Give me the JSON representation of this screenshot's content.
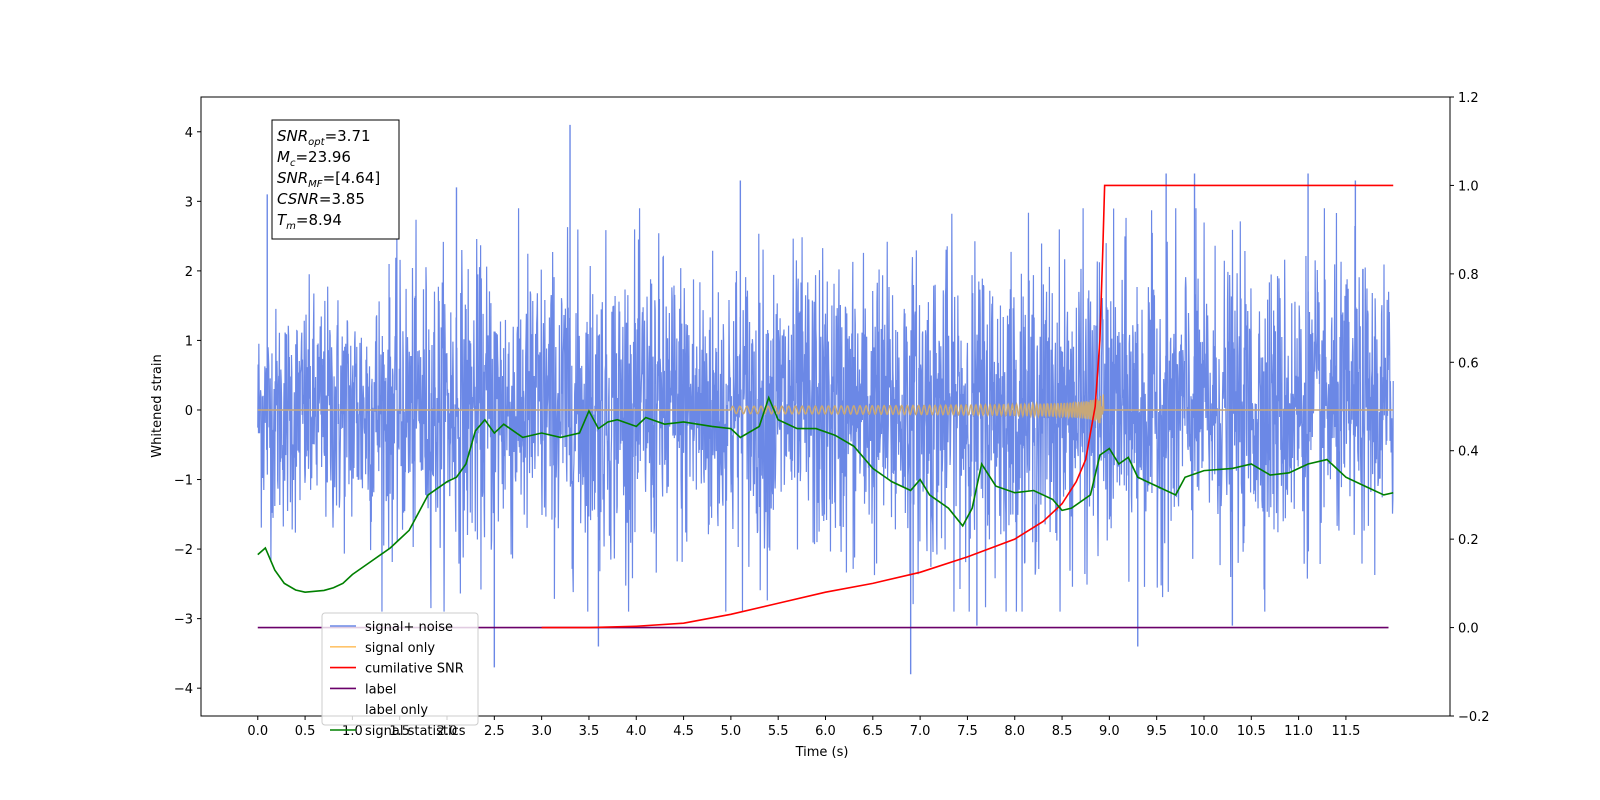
{
  "chart_data": {
    "type": "line",
    "xlabel": "Time (s)",
    "ylabel": "Whitened strain",
    "xlim": [
      -0.6,
      12.6
    ],
    "ylim_left": [
      -4.4,
      4.5
    ],
    "ylim_right": [
      -0.2,
      1.2
    ],
    "x_ticks": [
      "0.0",
      "0.5",
      "1.0",
      "1.5",
      "2.0",
      "2.5",
      "3.0",
      "3.5",
      "4.0",
      "4.5",
      "5.0",
      "5.5",
      "6.0",
      "6.5",
      "7.0",
      "7.5",
      "8.0",
      "8.5",
      "9.0",
      "9.5",
      "10.0",
      "10.5",
      "11.0",
      "11.5"
    ],
    "y_ticks_left": [
      "4",
      "3",
      "2",
      "1",
      "0",
      "−1",
      "−2",
      "−3",
      "−4"
    ],
    "y_ticks_right": [
      "1.2",
      "1.0",
      "0.8",
      "0.6",
      "0.4",
      "0.2",
      "0.0",
      "−0.2"
    ],
    "annotation": {
      "lines": [
        {
          "main": "SNR",
          "sub": "opt",
          "rest": "=3.71"
        },
        {
          "main": "M",
          "sub": "c",
          "rest": "=23.96"
        },
        {
          "main": "SNR",
          "sub": "MF",
          "rest": "=[4.64]"
        },
        {
          "main": "CSNR",
          "sub": "",
          "rest": "=3.85"
        },
        {
          "main": "T",
          "sub": "m",
          "rest": "=8.94"
        }
      ]
    },
    "legend": {
      "placement": "lower-left",
      "entries": [
        {
          "label": "signal+ noise",
          "color": "#6b88e6"
        },
        {
          "label": "signal only",
          "color": "#ffc46b"
        },
        {
          "label": "cumilative SNR",
          "color": "#ff0000"
        },
        {
          "label": "label",
          "color": "#6a006a"
        },
        {
          "label": "label only",
          "color": "#000000"
        },
        {
          "label": "signal statistics",
          "color": "#008000"
        }
      ]
    },
    "series": [
      {
        "name": "signal+ noise",
        "axis": "left",
        "color": "#6b88e6",
        "description": "whitened noise plus signal, t = 0 to 12 s",
        "envelope_upper": [
          [
            0,
            1.5
          ],
          [
            2,
            2.3
          ],
          [
            4,
            2.4
          ],
          [
            6,
            2.3
          ],
          [
            8,
            2.4
          ],
          [
            10,
            2.3
          ],
          [
            12,
            2.2
          ]
        ],
        "envelope_lower": [
          [
            0,
            -1.8
          ],
          [
            2,
            -2.2
          ],
          [
            4,
            -2.3
          ],
          [
            6,
            -2.3
          ],
          [
            8,
            -2.4
          ],
          [
            10,
            -2.2
          ],
          [
            12,
            -2.0
          ]
        ],
        "spikes": [
          [
            3.3,
            4.1
          ],
          [
            2.1,
            3.2
          ],
          [
            5.1,
            3.3
          ],
          [
            9.6,
            3.4
          ],
          [
            9.9,
            3.4
          ],
          [
            11.1,
            3.4
          ],
          [
            11.6,
            3.3
          ],
          [
            0.1,
            3.1
          ],
          [
            2.5,
            -3.7
          ],
          [
            6.9,
            -3.8
          ],
          [
            3.6,
            -3.4
          ],
          [
            9.3,
            -3.4
          ],
          [
            10.3,
            -3.1
          ],
          [
            7.6,
            -3.1
          ]
        ]
      },
      {
        "name": "signal only",
        "axis": "left",
        "color": "#ffc46b",
        "description": "chirp near zero, growing to about ±0.65 at t ≈ 8.9 s",
        "chirp_end": 8.94,
        "peak_amplitude": 0.65
      },
      {
        "name": "cumilative SNR",
        "axis": "right",
        "color": "#ff0000",
        "points": [
          [
            3.0,
            0.0
          ],
          [
            3.5,
            0.0
          ],
          [
            4.0,
            0.003
          ],
          [
            4.5,
            0.01
          ],
          [
            5.0,
            0.03
          ],
          [
            5.5,
            0.055
          ],
          [
            6.0,
            0.08
          ],
          [
            6.5,
            0.1
          ],
          [
            7.0,
            0.125
          ],
          [
            7.5,
            0.16
          ],
          [
            8.0,
            0.2
          ],
          [
            8.3,
            0.24
          ],
          [
            8.5,
            0.28
          ],
          [
            8.65,
            0.33
          ],
          [
            8.75,
            0.38
          ],
          [
            8.85,
            0.5
          ],
          [
            8.9,
            0.65
          ],
          [
            8.93,
            0.85
          ],
          [
            8.95,
            1.0
          ],
          [
            12.0,
            1.0
          ]
        ]
      },
      {
        "name": "label",
        "axis": "right",
        "color": "#6a006a",
        "points": [
          [
            0.0,
            0.0
          ],
          [
            11.95,
            0.0
          ]
        ]
      },
      {
        "name": "signal statistics",
        "axis": "right",
        "color": "#008000",
        "points": [
          [
            0.0,
            0.165
          ],
          [
            0.08,
            0.18
          ],
          [
            0.18,
            0.13
          ],
          [
            0.28,
            0.1
          ],
          [
            0.4,
            0.085
          ],
          [
            0.5,
            0.08
          ],
          [
            0.6,
            0.082
          ],
          [
            0.7,
            0.084
          ],
          [
            0.8,
            0.09
          ],
          [
            0.9,
            0.1
          ],
          [
            1.0,
            0.12
          ],
          [
            1.2,
            0.15
          ],
          [
            1.4,
            0.18
          ],
          [
            1.5,
            0.2
          ],
          [
            1.6,
            0.22
          ],
          [
            1.7,
            0.26
          ],
          [
            1.8,
            0.3
          ],
          [
            1.9,
            0.315
          ],
          [
            2.0,
            0.33
          ],
          [
            2.1,
            0.34
          ],
          [
            2.2,
            0.37
          ],
          [
            2.3,
            0.445
          ],
          [
            2.4,
            0.47
          ],
          [
            2.5,
            0.44
          ],
          [
            2.6,
            0.46
          ],
          [
            2.8,
            0.43
          ],
          [
            3.0,
            0.44
          ],
          [
            3.2,
            0.43
          ],
          [
            3.4,
            0.44
          ],
          [
            3.5,
            0.49
          ],
          [
            3.6,
            0.45
          ],
          [
            3.7,
            0.465
          ],
          [
            3.8,
            0.47
          ],
          [
            4.0,
            0.455
          ],
          [
            4.1,
            0.475
          ],
          [
            4.3,
            0.46
          ],
          [
            4.5,
            0.465
          ],
          [
            4.8,
            0.455
          ],
          [
            5.0,
            0.45
          ],
          [
            5.1,
            0.43
          ],
          [
            5.3,
            0.455
          ],
          [
            5.4,
            0.52
          ],
          [
            5.5,
            0.47
          ],
          [
            5.7,
            0.45
          ],
          [
            5.9,
            0.45
          ],
          [
            6.1,
            0.435
          ],
          [
            6.3,
            0.41
          ],
          [
            6.5,
            0.36
          ],
          [
            6.7,
            0.33
          ],
          [
            6.9,
            0.31
          ],
          [
            7.0,
            0.335
          ],
          [
            7.1,
            0.3
          ],
          [
            7.3,
            0.27
          ],
          [
            7.45,
            0.23
          ],
          [
            7.55,
            0.27
          ],
          [
            7.65,
            0.37
          ],
          [
            7.8,
            0.32
          ],
          [
            8.0,
            0.305
          ],
          [
            8.2,
            0.31
          ],
          [
            8.4,
            0.29
          ],
          [
            8.5,
            0.265
          ],
          [
            8.6,
            0.27
          ],
          [
            8.8,
            0.3
          ],
          [
            8.9,
            0.39
          ],
          [
            9.0,
            0.405
          ],
          [
            9.1,
            0.37
          ],
          [
            9.2,
            0.385
          ],
          [
            9.3,
            0.34
          ],
          [
            9.5,
            0.32
          ],
          [
            9.7,
            0.3
          ],
          [
            9.8,
            0.34
          ],
          [
            10.0,
            0.355
          ],
          [
            10.3,
            0.36
          ],
          [
            10.5,
            0.37
          ],
          [
            10.7,
            0.345
          ],
          [
            10.9,
            0.35
          ],
          [
            11.0,
            0.36
          ],
          [
            11.1,
            0.37
          ],
          [
            11.3,
            0.38
          ],
          [
            11.5,
            0.34
          ],
          [
            11.7,
            0.32
          ],
          [
            11.9,
            0.3
          ],
          [
            12.0,
            0.305
          ]
        ]
      }
    ]
  }
}
